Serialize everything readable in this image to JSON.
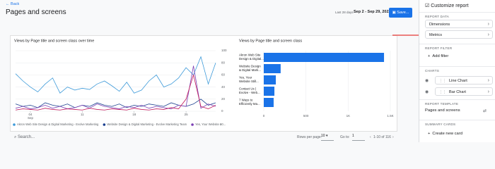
{
  "header": {
    "back": "Back",
    "title": "Pages and screens",
    "date_prefix": "Last 28 days",
    "date_range": "Sep 2 - Sep 29, 2022",
    "save": "Save..."
  },
  "line_chart": {
    "type": "line",
    "title": "Views by Page title and screen class over time",
    "xticks": [
      {
        "value": 2,
        "label": "04",
        "sublabel": "Sep"
      },
      {
        "value": 9,
        "label": "11"
      },
      {
        "value": 16,
        "label": "18"
      },
      {
        "value": 23,
        "label": "25"
      }
    ],
    "xlim": [
      0,
      27
    ],
    "ylim": [
      0,
      100
    ],
    "yticks": [
      0,
      20,
      40,
      60,
      80,
      100
    ],
    "grid": true,
    "series": [
      {
        "name": "Akron Web Site Design & Digital Marketing - Evolve Marketing",
        "color": "#3d9ad9",
        "values": [
          62,
          50,
          40,
          32,
          45,
          55,
          30,
          40,
          35,
          38,
          36,
          45,
          50,
          42,
          33,
          48,
          30,
          35,
          50,
          60,
          40,
          45,
          55,
          72,
          60,
          90,
          45,
          80
        ]
      },
      {
        "name": "Website Design & Digital Marketing - Evolve Marketing Team",
        "color": "#1a3f8f",
        "values": [
          12,
          8,
          10,
          6,
          14,
          10,
          8,
          12,
          6,
          10,
          8,
          14,
          10,
          8,
          12,
          6,
          10,
          8,
          12,
          10,
          8,
          14,
          10,
          8,
          12,
          20,
          10,
          14
        ]
      },
      {
        "name": "Yes, Your Website 00...",
        "color": "#7b3fb4",
        "values": [
          5,
          8,
          4,
          6,
          10,
          5,
          8,
          4,
          6,
          10,
          5,
          12,
          8,
          6,
          4,
          8,
          6,
          10,
          5,
          8,
          6,
          4,
          10,
          8,
          75,
          5,
          12,
          8
        ]
      },
      {
        "color": "#c2185b",
        "values": [
          2,
          4,
          3,
          2,
          5,
          3,
          2,
          4,
          3,
          2,
          5,
          3,
          2,
          4,
          3,
          2,
          5,
          3,
          2,
          4,
          3,
          6,
          4,
          20,
          60,
          8,
          4,
          10
        ]
      }
    ]
  },
  "bar_chart": {
    "type": "bar",
    "title": "Views by Page title and screen class",
    "categories": [
      [
        "Akron Web Site",
        "Design & Digital..."
      ],
      [
        "Website Design",
        "& Digital Mark..."
      ],
      [
        "Yes, Your",
        "Website Still..."
      ],
      [
        "Contact Us |",
        "Evolve - Web..."
      ],
      [
        "7 Ways to",
        "Efficiently Ma..."
      ]
    ],
    "values": [
      1425,
      200,
      143,
      126,
      117
    ],
    "color": "#1a73e8",
    "xlim": [
      0,
      1500
    ],
    "xticks": [
      0,
      500,
      {
        "value": 1000,
        "label": "1K"
      },
      {
        "value": 1500,
        "label": "1.5K"
      }
    ],
    "grid": true
  },
  "footer": {
    "search": "Search...",
    "rows_label": "Rows per page:",
    "rows": "10",
    "goto_label": "Go to:",
    "goto": "1",
    "range": "1-10 of 116"
  },
  "panel": {
    "title": "Customize report",
    "sections": [
      {
        "heading": "REPORT DATA",
        "items": [
          "Dimensions",
          "Metrics"
        ]
      },
      {
        "heading": "REPORT FILTER",
        "items": [
          "Add filter"
        ]
      },
      {
        "heading": "CHARTS",
        "items": [
          "Line Chart",
          "Bar Chart"
        ]
      },
      {
        "heading": "REPORT TEMPLATE",
        "items": [
          "Pages and screens"
        ]
      },
      {
        "heading": "SUMMARY CARDS",
        "items": [
          "Create new card"
        ]
      }
    ]
  }
}
